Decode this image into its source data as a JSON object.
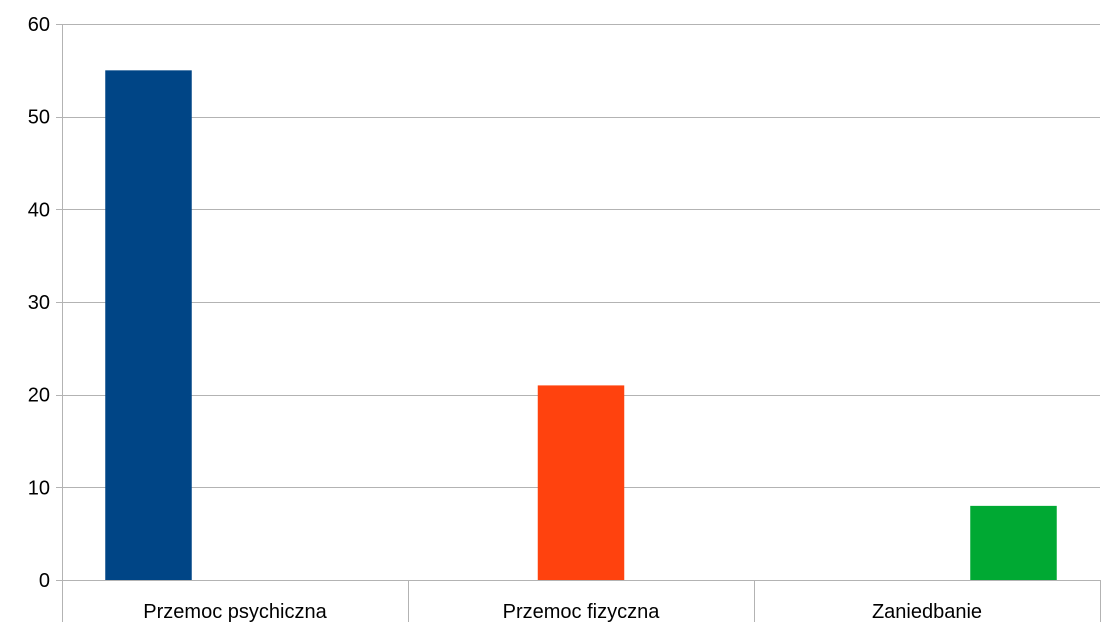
{
  "chart_data": {
    "type": "bar",
    "title": "",
    "xlabel": "",
    "ylabel": "",
    "categories": [
      "Przemoc psychiczna",
      "Przemoc fizyczna",
      "Zaniedbanie"
    ],
    "series": [
      {
        "values": [
          55,
          null,
          null
        ],
        "color": "#004586"
      },
      {
        "values": [
          null,
          21,
          null
        ],
        "color": "#ff420e"
      },
      {
        "values": [
          null,
          null,
          8
        ],
        "color": "#00a933"
      }
    ],
    "ylim": [
      0,
      60
    ],
    "yticks": [
      0,
      10,
      20,
      30,
      40,
      50,
      60
    ],
    "grid": true,
    "legend": "none",
    "colors": {
      "grid": "#b3b3b3",
      "axis": "#b3b3b3",
      "background": "#ffffff"
    }
  }
}
